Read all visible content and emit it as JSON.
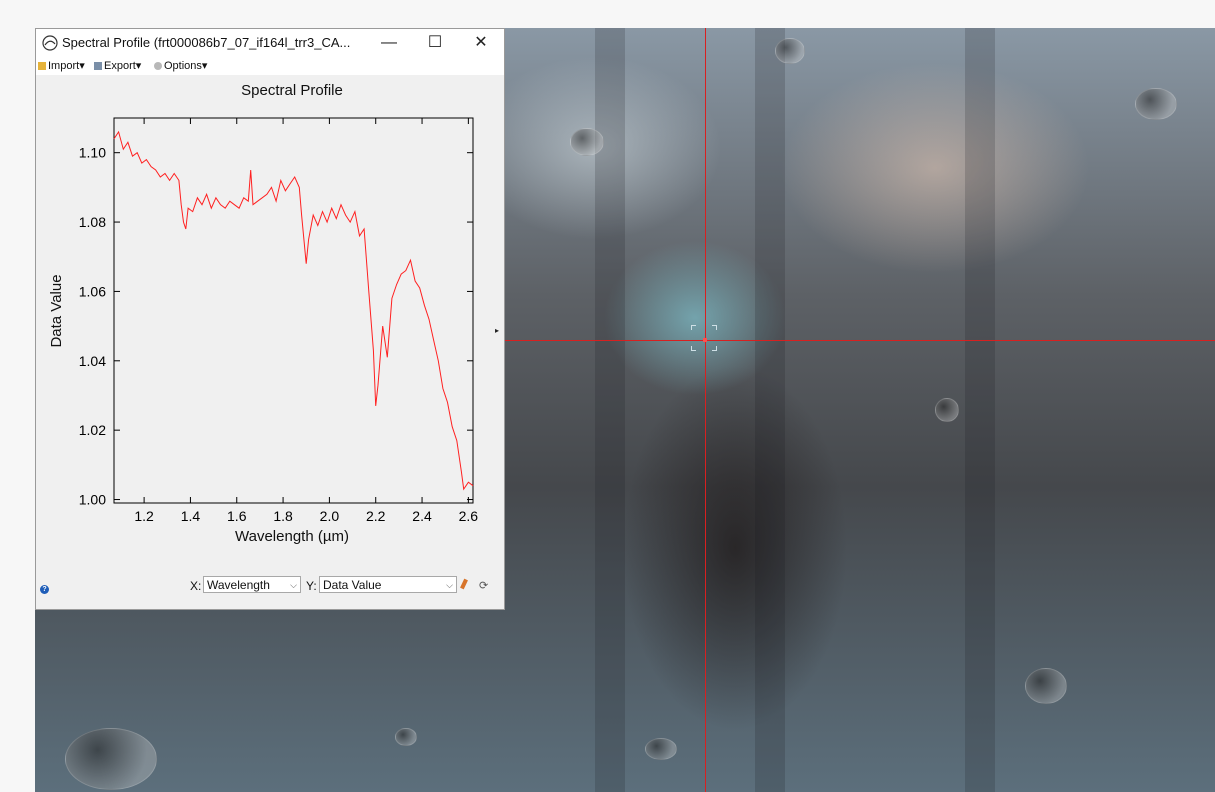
{
  "window": {
    "title": "Spectral Profile (frt000086b7_07_if164l_trr3_CA...",
    "minimize_label": "—",
    "maximize_label": "☐",
    "close_label": "✕"
  },
  "menu": {
    "import_label": "Import",
    "export_label": "Export",
    "options_label": "Options"
  },
  "axis_selectors": {
    "x_label": "X:",
    "x_value": "Wavelength",
    "y_label": "Y:",
    "y_value": "Data Value"
  },
  "colors": {
    "series": "#ff2020",
    "crosshair": "#d82020"
  },
  "chart_data": {
    "type": "line",
    "title": "Spectral Profile",
    "xlabel": "Wavelength (µm)",
    "ylabel": "Data Value",
    "xlim": [
      1.07,
      2.62
    ],
    "ylim": [
      0.999,
      1.11
    ],
    "xticks": [
      "1.2",
      "1.4",
      "1.6",
      "1.8",
      "2.0",
      "2.2",
      "2.4",
      "2.6"
    ],
    "yticks": [
      "1.00",
      "1.02",
      "1.04",
      "1.06",
      "1.08",
      "1.10"
    ],
    "grid": false,
    "series": [
      {
        "x": [
          1.07,
          1.09,
          1.11,
          1.13,
          1.15,
          1.17,
          1.19,
          1.21,
          1.23,
          1.25,
          1.27,
          1.29,
          1.31,
          1.33,
          1.35,
          1.36,
          1.37,
          1.38,
          1.39,
          1.41,
          1.43,
          1.45,
          1.47,
          1.49,
          1.51,
          1.53,
          1.55,
          1.57,
          1.59,
          1.61,
          1.63,
          1.65,
          1.66,
          1.67,
          1.69,
          1.71,
          1.73,
          1.75,
          1.77,
          1.79,
          1.81,
          1.83,
          1.85,
          1.87,
          1.88,
          1.9,
          1.91,
          1.93,
          1.95,
          1.97,
          1.99,
          2.01,
          2.03,
          2.05,
          2.07,
          2.09,
          2.11,
          2.13,
          2.15,
          2.17,
          2.19,
          2.2,
          2.21,
          2.23,
          2.25,
          2.27,
          2.29,
          2.31,
          2.33,
          2.35,
          2.37,
          2.39,
          2.41,
          2.43,
          2.45,
          2.47,
          2.49,
          2.51,
          2.53,
          2.55,
          2.57,
          2.58,
          2.6,
          2.62
        ],
        "y": [
          1.104,
          1.106,
          1.101,
          1.103,
          1.099,
          1.1,
          1.097,
          1.098,
          1.096,
          1.095,
          1.093,
          1.094,
          1.092,
          1.094,
          1.092,
          1.085,
          1.08,
          1.078,
          1.084,
          1.083,
          1.087,
          1.085,
          1.088,
          1.084,
          1.087,
          1.085,
          1.084,
          1.086,
          1.085,
          1.084,
          1.087,
          1.086,
          1.095,
          1.085,
          1.086,
          1.087,
          1.088,
          1.09,
          1.086,
          1.092,
          1.089,
          1.091,
          1.093,
          1.09,
          1.082,
          1.068,
          1.075,
          1.082,
          1.079,
          1.083,
          1.08,
          1.084,
          1.081,
          1.085,
          1.082,
          1.08,
          1.083,
          1.076,
          1.078,
          1.06,
          1.043,
          1.027,
          1.033,
          1.05,
          1.041,
          1.058,
          1.062,
          1.065,
          1.066,
          1.069,
          1.063,
          1.061,
          1.056,
          1.052,
          1.046,
          1.04,
          1.032,
          1.028,
          1.021,
          1.017,
          1.008,
          1.003,
          1.005,
          1.004
        ]
      }
    ]
  }
}
